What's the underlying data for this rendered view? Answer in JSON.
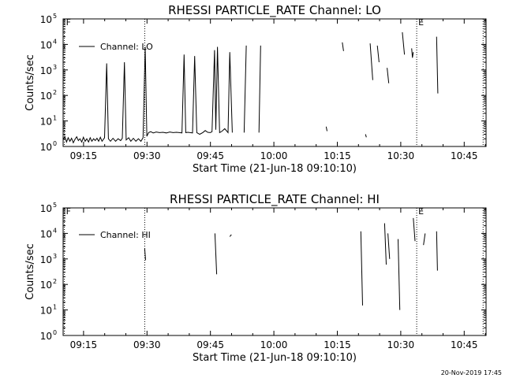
{
  "footer": {
    "timestamp": "20-Nov-2019 17:45"
  },
  "chart_data": [
    {
      "type": "line",
      "title": "RHESSI PARTICLE_RATE Channel: LO",
      "xlabel": "Start Time (21-Jun-18 09:10:10)",
      "ylabel": "Counts/sec",
      "x_units": "minutes since 09:10:10",
      "xlim": [
        0,
        100
      ],
      "ylim": [
        1,
        100000
      ],
      "y_scale": "log",
      "x_ticks": [
        {
          "label": "09:15",
          "x": 4.83
        },
        {
          "label": "09:30",
          "x": 19.83
        },
        {
          "label": "09:45",
          "x": 34.83
        },
        {
          "label": "10:00",
          "x": 49.83
        },
        {
          "label": "10:15",
          "x": 64.83
        },
        {
          "label": "10:30",
          "x": 79.83
        },
        {
          "label": "10:45",
          "x": 94.83
        }
      ],
      "y_ticks": [
        {
          "label": "10",
          "exp": "0",
          "y": 1
        },
        {
          "label": "10",
          "exp": "1",
          "y": 10
        },
        {
          "label": "10",
          "exp": "2",
          "y": 100
        },
        {
          "label": "10",
          "exp": "3",
          "y": 1000
        },
        {
          "label": "10",
          "exp": "4",
          "y": 10000
        },
        {
          "label": "10",
          "exp": "5",
          "y": 100000
        }
      ],
      "markers": [
        {
          "label": "F",
          "x": 0.3
        },
        {
          "label": "",
          "x": 19.3
        },
        {
          "label": "E",
          "x": 83.6
        },
        {
          "label": "",
          "x": 99.3
        }
      ],
      "legend": {
        "entry": "Channel: LO",
        "position": "top-left"
      },
      "series": [
        {
          "points": [
            [
              0,
              1.8
            ],
            [
              0.4,
              2.5
            ],
            [
              0.8,
              1.5
            ],
            [
              1.2,
              2.2
            ],
            [
              1.6,
              1.6
            ],
            [
              2.0,
              2.1
            ],
            [
              2.4,
              1.4
            ],
            [
              2.8,
              1.9
            ],
            [
              3.2,
              2.4
            ],
            [
              3.6,
              1.7
            ],
            [
              4.0,
              2.0
            ],
            [
              4.4,
              1.5
            ],
            [
              4.8,
              2.3
            ],
            [
              5.2,
              1.6
            ],
            [
              5.6,
              2.0
            ],
            [
              6.0,
              1.5
            ],
            [
              6.4,
              2.2
            ],
            [
              6.8,
              1.6
            ],
            [
              7.2,
              2.0
            ],
            [
              7.6,
              1.7
            ],
            [
              8.0,
              2.1
            ],
            [
              8.4,
              1.6
            ],
            [
              8.8,
              2.3
            ],
            [
              9.2,
              1.6
            ],
            [
              9.8,
              2.2
            ],
            [
              10.3,
              1800
            ],
            [
              10.7,
              2.0
            ],
            [
              11.2,
              1.6
            ],
            [
              11.8,
              2.1
            ],
            [
              12.4,
              1.6
            ],
            [
              13.0,
              2.0
            ],
            [
              13.6,
              1.7
            ],
            [
              14.0,
              2.1
            ],
            [
              14.5,
              2000
            ],
            [
              14.9,
              1.8
            ],
            [
              15.5,
              2.2
            ],
            [
              16.0,
              1.6
            ],
            [
              16.6,
              2.1
            ],
            [
              17.2,
              1.6
            ],
            [
              17.8,
              2.0
            ],
            [
              18.4,
              1.6
            ],
            [
              18.9,
              2.2
            ],
            [
              19.4,
              8000
            ],
            [
              19.8,
              2.5
            ],
            [
              20.2,
              3.5
            ],
            [
              20.7,
              3.8
            ],
            [
              21.3,
              3.4
            ],
            [
              22.0,
              3.7
            ],
            [
              22.8,
              3.5
            ],
            [
              23.6,
              3.6
            ],
            [
              24.4,
              3.4
            ],
            [
              25.2,
              3.7
            ],
            [
              26.0,
              3.5
            ],
            [
              26.8,
              3.6
            ],
            [
              27.5,
              3.5
            ],
            [
              28.1,
              3.4
            ],
            [
              28.6,
              4000
            ],
            [
              29.0,
              3.5
            ],
            [
              29.5,
              3.6
            ],
            [
              30.0,
              3.5
            ],
            [
              30.6,
              3.4
            ],
            [
              31.1,
              3500
            ],
            [
              31.6,
              3.5
            ],
            [
              32.3,
              3.0
            ],
            [
              33.0,
              3.5
            ],
            [
              33.6,
              4.2
            ],
            [
              34.2,
              3.6
            ],
            [
              34.8,
              3.5
            ],
            [
              35.2,
              3.8
            ],
            [
              35.8,
              6000
            ],
            [
              36.1,
              4.5
            ],
            [
              36.5,
              8000
            ],
            [
              37.0,
              3.5
            ],
            [
              37.6,
              4.0
            ],
            [
              38.2,
              5.0
            ],
            [
              39.0,
              3.5
            ],
            [
              39.4,
              5000
            ],
            [
              40.0,
              3.5
            ]
          ]
        },
        {
          "points": [
            [
              42.8,
              3.5
            ],
            [
              43.3,
              9000
            ]
          ]
        },
        {
          "points": [
            [
              46.3,
              3.5
            ],
            [
              46.7,
              9000
            ]
          ]
        },
        {
          "points": [
            [
              62.2,
              6.0
            ],
            [
              62.4,
              4.0
            ]
          ]
        },
        {
          "points": [
            [
              66.0,
              12000
            ],
            [
              66.3,
              5500
            ]
          ]
        },
        {
          "points": [
            [
              71.5,
              3.0
            ],
            [
              71.7,
              2.3
            ]
          ]
        },
        {
          "points": [
            [
              72.6,
              11000
            ],
            [
              73.2,
              400
            ]
          ]
        },
        {
          "points": [
            [
              74.3,
              9000
            ],
            [
              74.7,
              2000
            ]
          ]
        },
        {
          "points": [
            [
              76.6,
              1200
            ],
            [
              77.0,
              300
            ]
          ]
        },
        {
          "points": [
            [
              80.2,
              30000
            ],
            [
              80.7,
              4000
            ]
          ]
        },
        {
          "points": [
            [
              82.4,
              7000
            ],
            [
              82.6,
              3000
            ],
            [
              82.8,
              5000
            ]
          ]
        },
        {
          "points": [
            [
              88.3,
              20000
            ],
            [
              88.6,
              120
            ]
          ]
        }
      ]
    },
    {
      "type": "line",
      "title": "RHESSI PARTICLE_RATE Channel: HI",
      "xlabel": "Start Time (21-Jun-18 09:10:10)",
      "ylabel": "Counts/sec",
      "x_units": "minutes since 09:10:10",
      "xlim": [
        0,
        100
      ],
      "ylim": [
        1,
        100000
      ],
      "y_scale": "log",
      "x_ticks": [
        {
          "label": "09:15",
          "x": 4.83
        },
        {
          "label": "09:30",
          "x": 19.83
        },
        {
          "label": "09:45",
          "x": 34.83
        },
        {
          "label": "10:00",
          "x": 49.83
        },
        {
          "label": "10:15",
          "x": 64.83
        },
        {
          "label": "10:30",
          "x": 79.83
        },
        {
          "label": "10:45",
          "x": 94.83
        }
      ],
      "y_ticks": [
        {
          "label": "10",
          "exp": "0",
          "y": 1
        },
        {
          "label": "10",
          "exp": "1",
          "y": 10
        },
        {
          "label": "10",
          "exp": "2",
          "y": 100
        },
        {
          "label": "10",
          "exp": "3",
          "y": 1000
        },
        {
          "label": "10",
          "exp": "4",
          "y": 10000
        },
        {
          "label": "10",
          "exp": "5",
          "y": 100000
        }
      ],
      "markers": [
        {
          "label": "F",
          "x": 0.3
        },
        {
          "label": "",
          "x": 19.3
        },
        {
          "label": "E",
          "x": 83.6
        },
        {
          "label": "",
          "x": 99.3
        }
      ],
      "legend": {
        "entry": "Channel: HI",
        "position": "top-left"
      },
      "series": [
        {
          "points": [
            [
              19.3,
              2500
            ],
            [
              19.5,
              900
            ]
          ]
        },
        {
          "points": [
            [
              35.9,
              10000
            ],
            [
              36.3,
              250
            ]
          ]
        },
        {
          "points": [
            [
              39.4,
              7500
            ],
            [
              39.8,
              9000
            ]
          ]
        },
        {
          "points": [
            [
              70.4,
              12000
            ],
            [
              70.8,
              15
            ]
          ]
        },
        {
          "points": [
            [
              76.0,
              25000
            ],
            [
              76.4,
              600
            ]
          ]
        },
        {
          "points": [
            [
              76.8,
              10000
            ],
            [
              77.2,
              1000
            ]
          ]
        },
        {
          "points": [
            [
              79.2,
              6000
            ],
            [
              79.6,
              10
            ]
          ]
        },
        {
          "points": [
            [
              82.8,
              40000
            ],
            [
              83.2,
              5000
            ]
          ]
        },
        {
          "points": [
            [
              85.2,
              3500
            ],
            [
              85.6,
              10000
            ]
          ]
        },
        {
          "points": [
            [
              88.3,
              12000
            ],
            [
              88.5,
              350
            ]
          ]
        }
      ]
    }
  ]
}
